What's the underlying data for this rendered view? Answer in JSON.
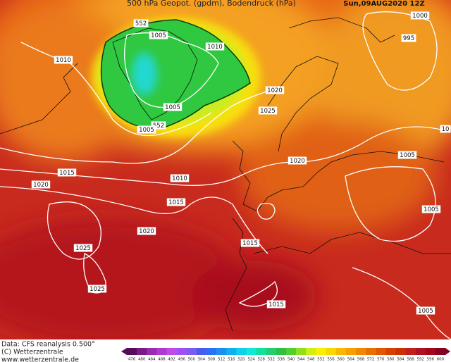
{
  "header": {
    "title": "500 hPa Geopot. (gpdm), Bodendruck (hPa)",
    "date": "Sun,09AUG2020 12Z"
  },
  "isobar_labels": [
    "552",
    "1005",
    "1010",
    "1010",
    "1020",
    "1005",
    "1025",
    "552",
    "1005",
    "1000",
    "995",
    "10",
    "1005",
    "1020",
    "1015",
    "1010",
    "1020",
    "1015",
    "1005",
    "1020",
    "1015",
    "1025",
    "1025",
    "1015",
    "1005"
  ],
  "footer": {
    "source": "Data: CFS reanalysis 0.500°",
    "copyright": "(C) Wetterzentrale",
    "url": "www.wetterzentrale.de"
  },
  "colorbar": {
    "labels": [
      476,
      480,
      484,
      488,
      492,
      496,
      500,
      504,
      508,
      512,
      516,
      520,
      524,
      528,
      532,
      536,
      540,
      544,
      548,
      552,
      556,
      560,
      564,
      568,
      572,
      576,
      580,
      584,
      588,
      592,
      596,
      600
    ],
    "colors": [
      "#5a0a5a",
      "#7a1a8a",
      "#9a2ab0",
      "#b03ad0",
      "#c04ae8",
      "#a050f0",
      "#7a5cf0",
      "#4a5cf0",
      "#2a70f0",
      "#1a90f0",
      "#10b0f0",
      "#10d0f0",
      "#10e8d8",
      "#10e0a0",
      "#20d070",
      "#30c040",
      "#50d030",
      "#90e020",
      "#d0f010",
      "#f8f000",
      "#f8d800",
      "#f8b800",
      "#f8a000",
      "#f08800",
      "#e87000",
      "#e05800",
      "#d84000",
      "#d03000",
      "#c02020",
      "#b01020",
      "#a00820",
      "#880020"
    ]
  }
}
